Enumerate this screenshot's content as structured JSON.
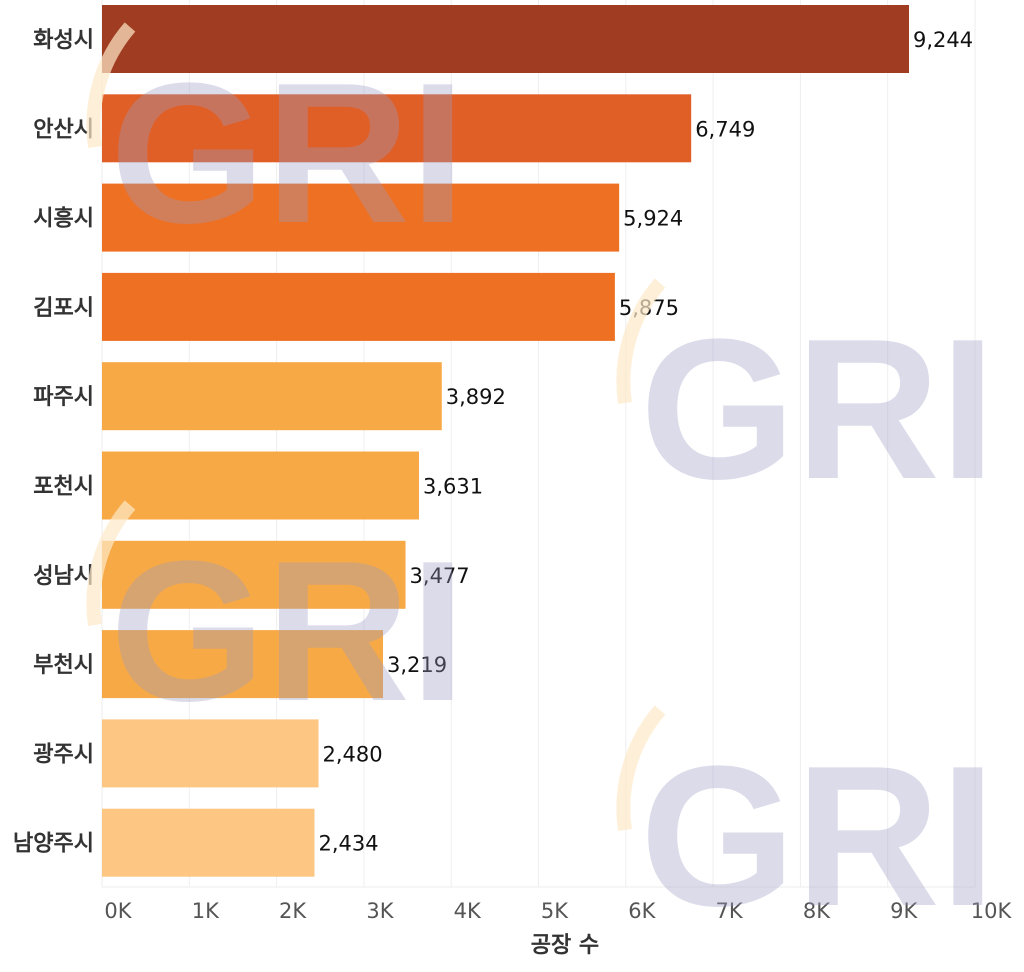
{
  "chart_data": {
    "type": "bar",
    "orientation": "horizontal",
    "categories": [
      "화성시",
      "안산시",
      "시흥시",
      "김포시",
      "파주시",
      "포천시",
      "성남시",
      "부천시",
      "광주시",
      "남양주시"
    ],
    "values": [
      9244,
      6749,
      5924,
      5875,
      3892,
      3631,
      3477,
      3219,
      2480,
      2434
    ],
    "data_labels": [
      "9,244",
      "6,749",
      "5,924",
      "5,875",
      "3,892",
      "3,631",
      "3,477",
      "3,219",
      "2,480",
      "2,434"
    ],
    "colors": [
      "#a03c22",
      "#e05f27",
      "#ee7022",
      "#ee7022",
      "#f7a945",
      "#f7a945",
      "#f7a945",
      "#f7a945",
      "#fdc682",
      "#fdc682"
    ],
    "xticks": [
      0,
      1000,
      2000,
      3000,
      4000,
      5000,
      6000,
      7000,
      8000,
      9000,
      10000
    ],
    "xtick_labels": [
      "0K",
      "1K",
      "2K",
      "3K",
      "4K",
      "5K",
      "6K",
      "7K",
      "8K",
      "9K",
      "10K"
    ],
    "xlim": [
      0,
      10000
    ],
    "xlabel": "공장 수",
    "ylabel": "",
    "grid": true,
    "watermark": "GRI"
  }
}
